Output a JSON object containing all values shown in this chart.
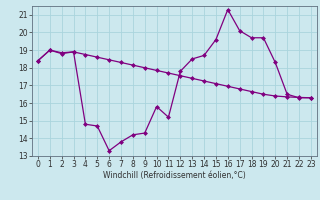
{
  "title": "",
  "xlabel": "Windchill (Refroidissement éolien,°C)",
  "ylabel": "",
  "bg_color": "#cce8ee",
  "line_color": "#800080",
  "grid_color": "#aad4dd",
  "xlim": [
    -0.5,
    23.5
  ],
  "ylim": [
    13,
    21.5
  ],
  "yticks": [
    13,
    14,
    15,
    16,
    17,
    18,
    19,
    20,
    21
  ],
  "xticks": [
    0,
    1,
    2,
    3,
    4,
    5,
    6,
    7,
    8,
    9,
    10,
    11,
    12,
    13,
    14,
    15,
    16,
    17,
    18,
    19,
    20,
    21,
    22,
    23
  ],
  "line1_x": [
    0,
    1,
    2,
    3,
    4,
    5,
    6,
    7,
    8,
    9,
    10,
    11,
    12,
    13,
    14,
    15,
    16,
    17,
    18,
    19,
    20,
    21,
    22,
    23
  ],
  "line1_y": [
    18.4,
    19.0,
    18.8,
    18.9,
    14.8,
    14.7,
    13.3,
    13.8,
    14.2,
    14.3,
    15.8,
    15.2,
    17.8,
    18.5,
    18.7,
    19.6,
    21.3,
    20.1,
    19.7,
    19.7,
    18.3,
    16.5,
    16.3,
    16.3
  ],
  "line2_x": [
    0,
    1,
    2,
    3,
    4,
    5,
    6,
    7,
    8,
    9,
    10,
    11,
    12,
    13,
    14,
    15,
    16,
    17,
    18,
    19,
    20,
    21,
    22,
    23
  ],
  "line2_y": [
    18.4,
    19.0,
    18.85,
    18.9,
    18.75,
    18.6,
    18.45,
    18.3,
    18.15,
    18.0,
    17.85,
    17.7,
    17.55,
    17.4,
    17.25,
    17.1,
    16.95,
    16.8,
    16.65,
    16.5,
    16.4,
    16.35,
    16.32,
    16.3
  ],
  "tick_fontsize": 5.5,
  "xlabel_fontsize": 5.5,
  "marker_size": 2.0,
  "line_width": 0.9
}
